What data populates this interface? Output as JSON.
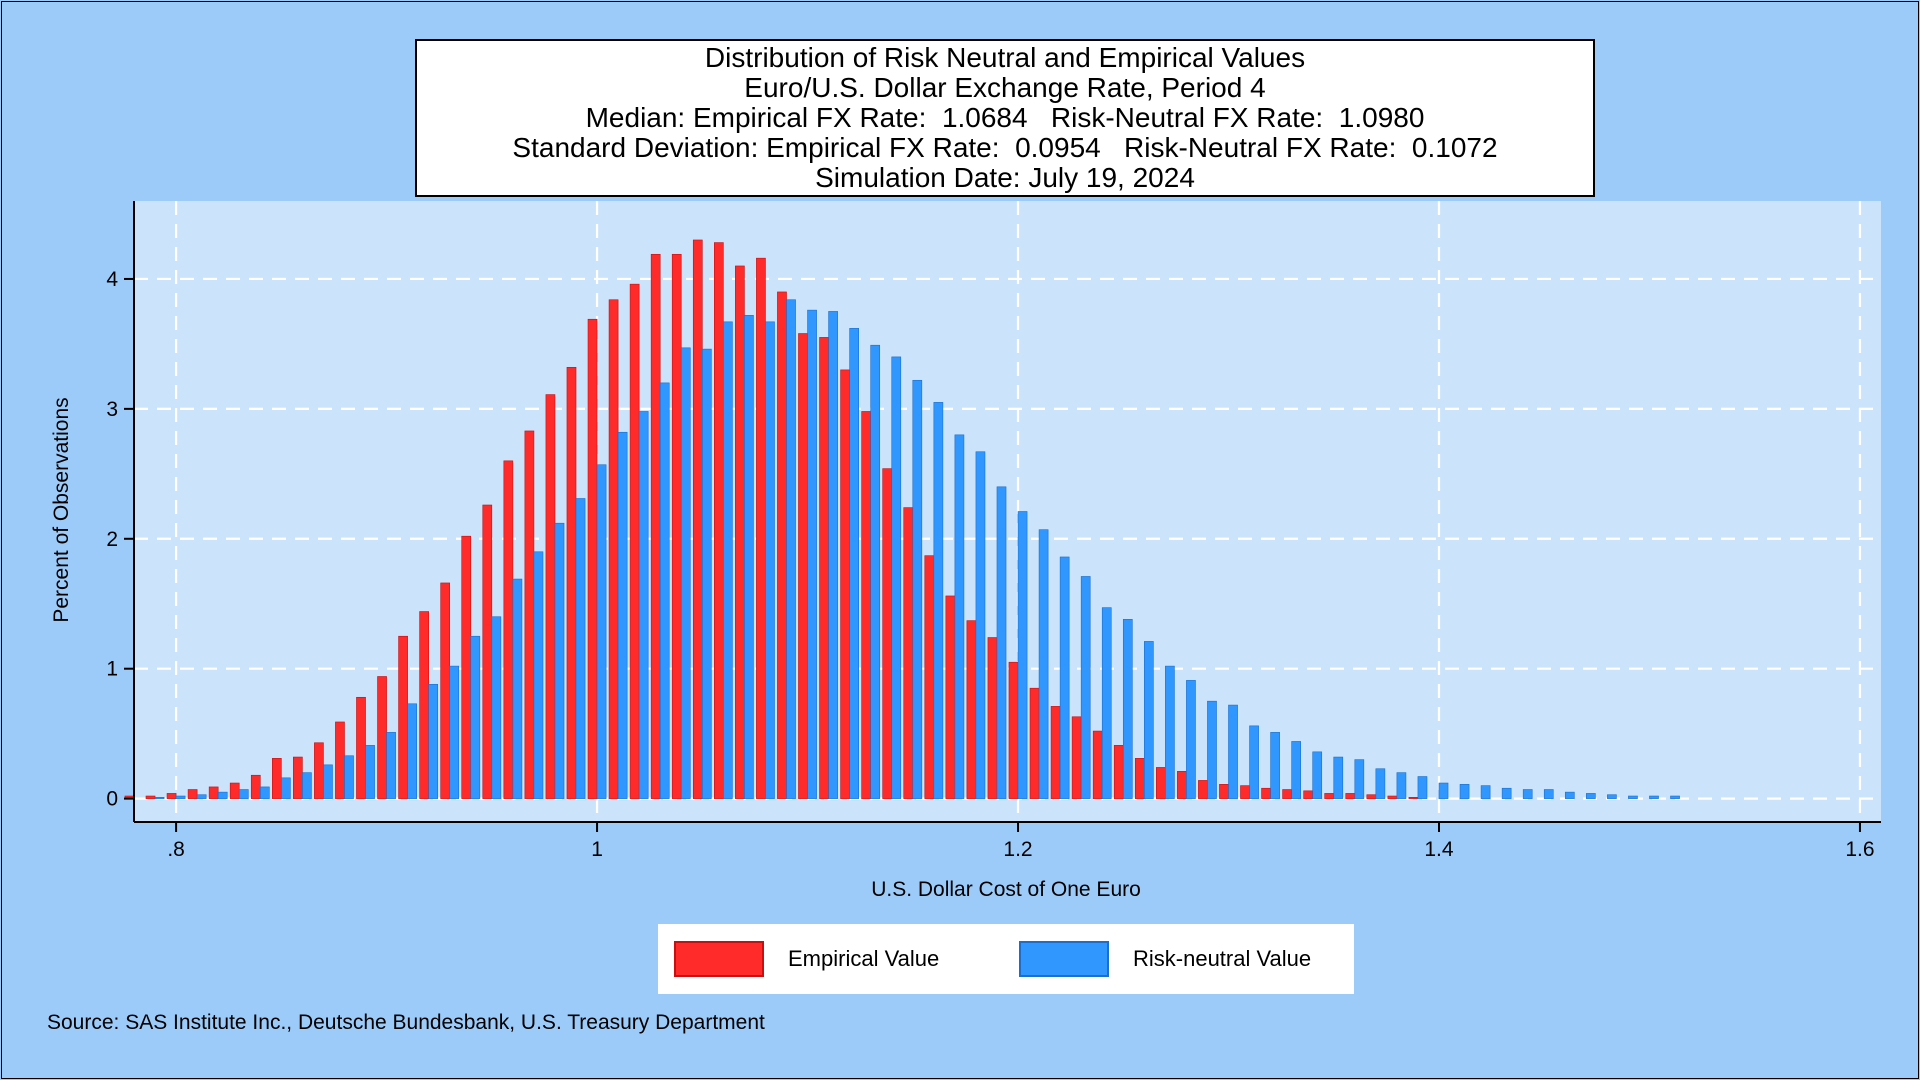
{
  "title_lines": [
    "Distribution of Risk Neutral and Empirical Values",
    "Euro/U.S. Dollar Exchange Rate, Period 4",
    "Median: Empirical FX Rate:  1.0684   Risk-Neutral FX Rate:  1.0980",
    "Standard Deviation: Empirical FX Rate:  0.0954   Risk-Neutral FX Rate:  0.1072",
    "Simulation Date: July 19, 2024"
  ],
  "source_note": "Source: SAS Institute Inc., Deutsche Bundesbank, U.S. Treasury Department",
  "colors": {
    "background": "#9ccbf9",
    "plot_background": "#cce4fb",
    "empirical": "#ff2a2a",
    "risk_neutral": "#2f97ff",
    "grid": "#ffffff"
  },
  "chart_data": {
    "type": "bar",
    "xlabel": "U.S. Dollar Cost of One Euro",
    "ylabel": "Percent of Observations",
    "xlim": [
      0.78,
      1.61
    ],
    "ylim": [
      -0.18,
      4.6
    ],
    "xticks": [
      0.8,
      1.0,
      1.2,
      1.4,
      1.6
    ],
    "xtick_labels": [
      ".8",
      "1",
      "1.2",
      "1.4",
      "1.6"
    ],
    "yticks": [
      0,
      1,
      2,
      3,
      4
    ],
    "ytick_labels": [
      "0",
      "1",
      "2",
      "3",
      "4"
    ],
    "grid": true,
    "legend_position": "bottom",
    "bin_width": 0.01,
    "x_start": 0.78,
    "series": [
      {
        "name": "Empirical Value",
        "color": "#ff2a2a",
        "values": [
          0.02,
          0.02,
          0.04,
          0.07,
          0.09,
          0.12,
          0.18,
          0.31,
          0.32,
          0.43,
          0.59,
          0.78,
          0.94,
          1.25,
          1.44,
          1.66,
          2.02,
          2.26,
          2.6,
          2.83,
          3.11,
          3.32,
          3.69,
          3.84,
          3.96,
          4.19,
          4.19,
          4.3,
          4.28,
          4.1,
          4.16,
          3.9,
          3.58,
          3.55,
          3.3,
          2.98,
          2.54,
          2.24,
          1.87,
          1.56,
          1.37,
          1.24,
          1.05,
          0.85,
          0.71,
          0.63,
          0.52,
          0.41,
          0.31,
          0.24,
          0.21,
          0.14,
          0.11,
          0.1,
          0.08,
          0.07,
          0.06,
          0.04,
          0.04,
          0.03,
          0.02,
          0.01,
          0,
          0,
          0,
          0,
          0,
          0,
          0,
          0,
          0,
          0,
          0,
          0
        ]
      },
      {
        "name": "Risk-neutral Value",
        "color": "#2f97ff",
        "values": [
          0,
          0.01,
          0.02,
          0.03,
          0.05,
          0.07,
          0.09,
          0.16,
          0.2,
          0.26,
          0.33,
          0.41,
          0.51,
          0.73,
          0.88,
          1.02,
          1.25,
          1.4,
          1.69,
          1.9,
          2.12,
          2.31,
          2.57,
          2.82,
          2.98,
          3.2,
          3.47,
          3.46,
          3.67,
          3.72,
          3.67,
          3.84,
          3.76,
          3.75,
          3.62,
          3.49,
          3.4,
          3.22,
          3.05,
          2.8,
          2.67,
          2.4,
          2.21,
          2.07,
          1.86,
          1.71,
          1.47,
          1.38,
          1.21,
          1.02,
          0.91,
          0.75,
          0.72,
          0.56,
          0.51,
          0.44,
          0.36,
          0.32,
          0.3,
          0.23,
          0.2,
          0.17,
          0.12,
          0.11,
          0.1,
          0.08,
          0.07,
          0.07,
          0.05,
          0.04,
          0.03,
          0.02,
          0.02,
          0.02
        ]
      }
    ]
  }
}
